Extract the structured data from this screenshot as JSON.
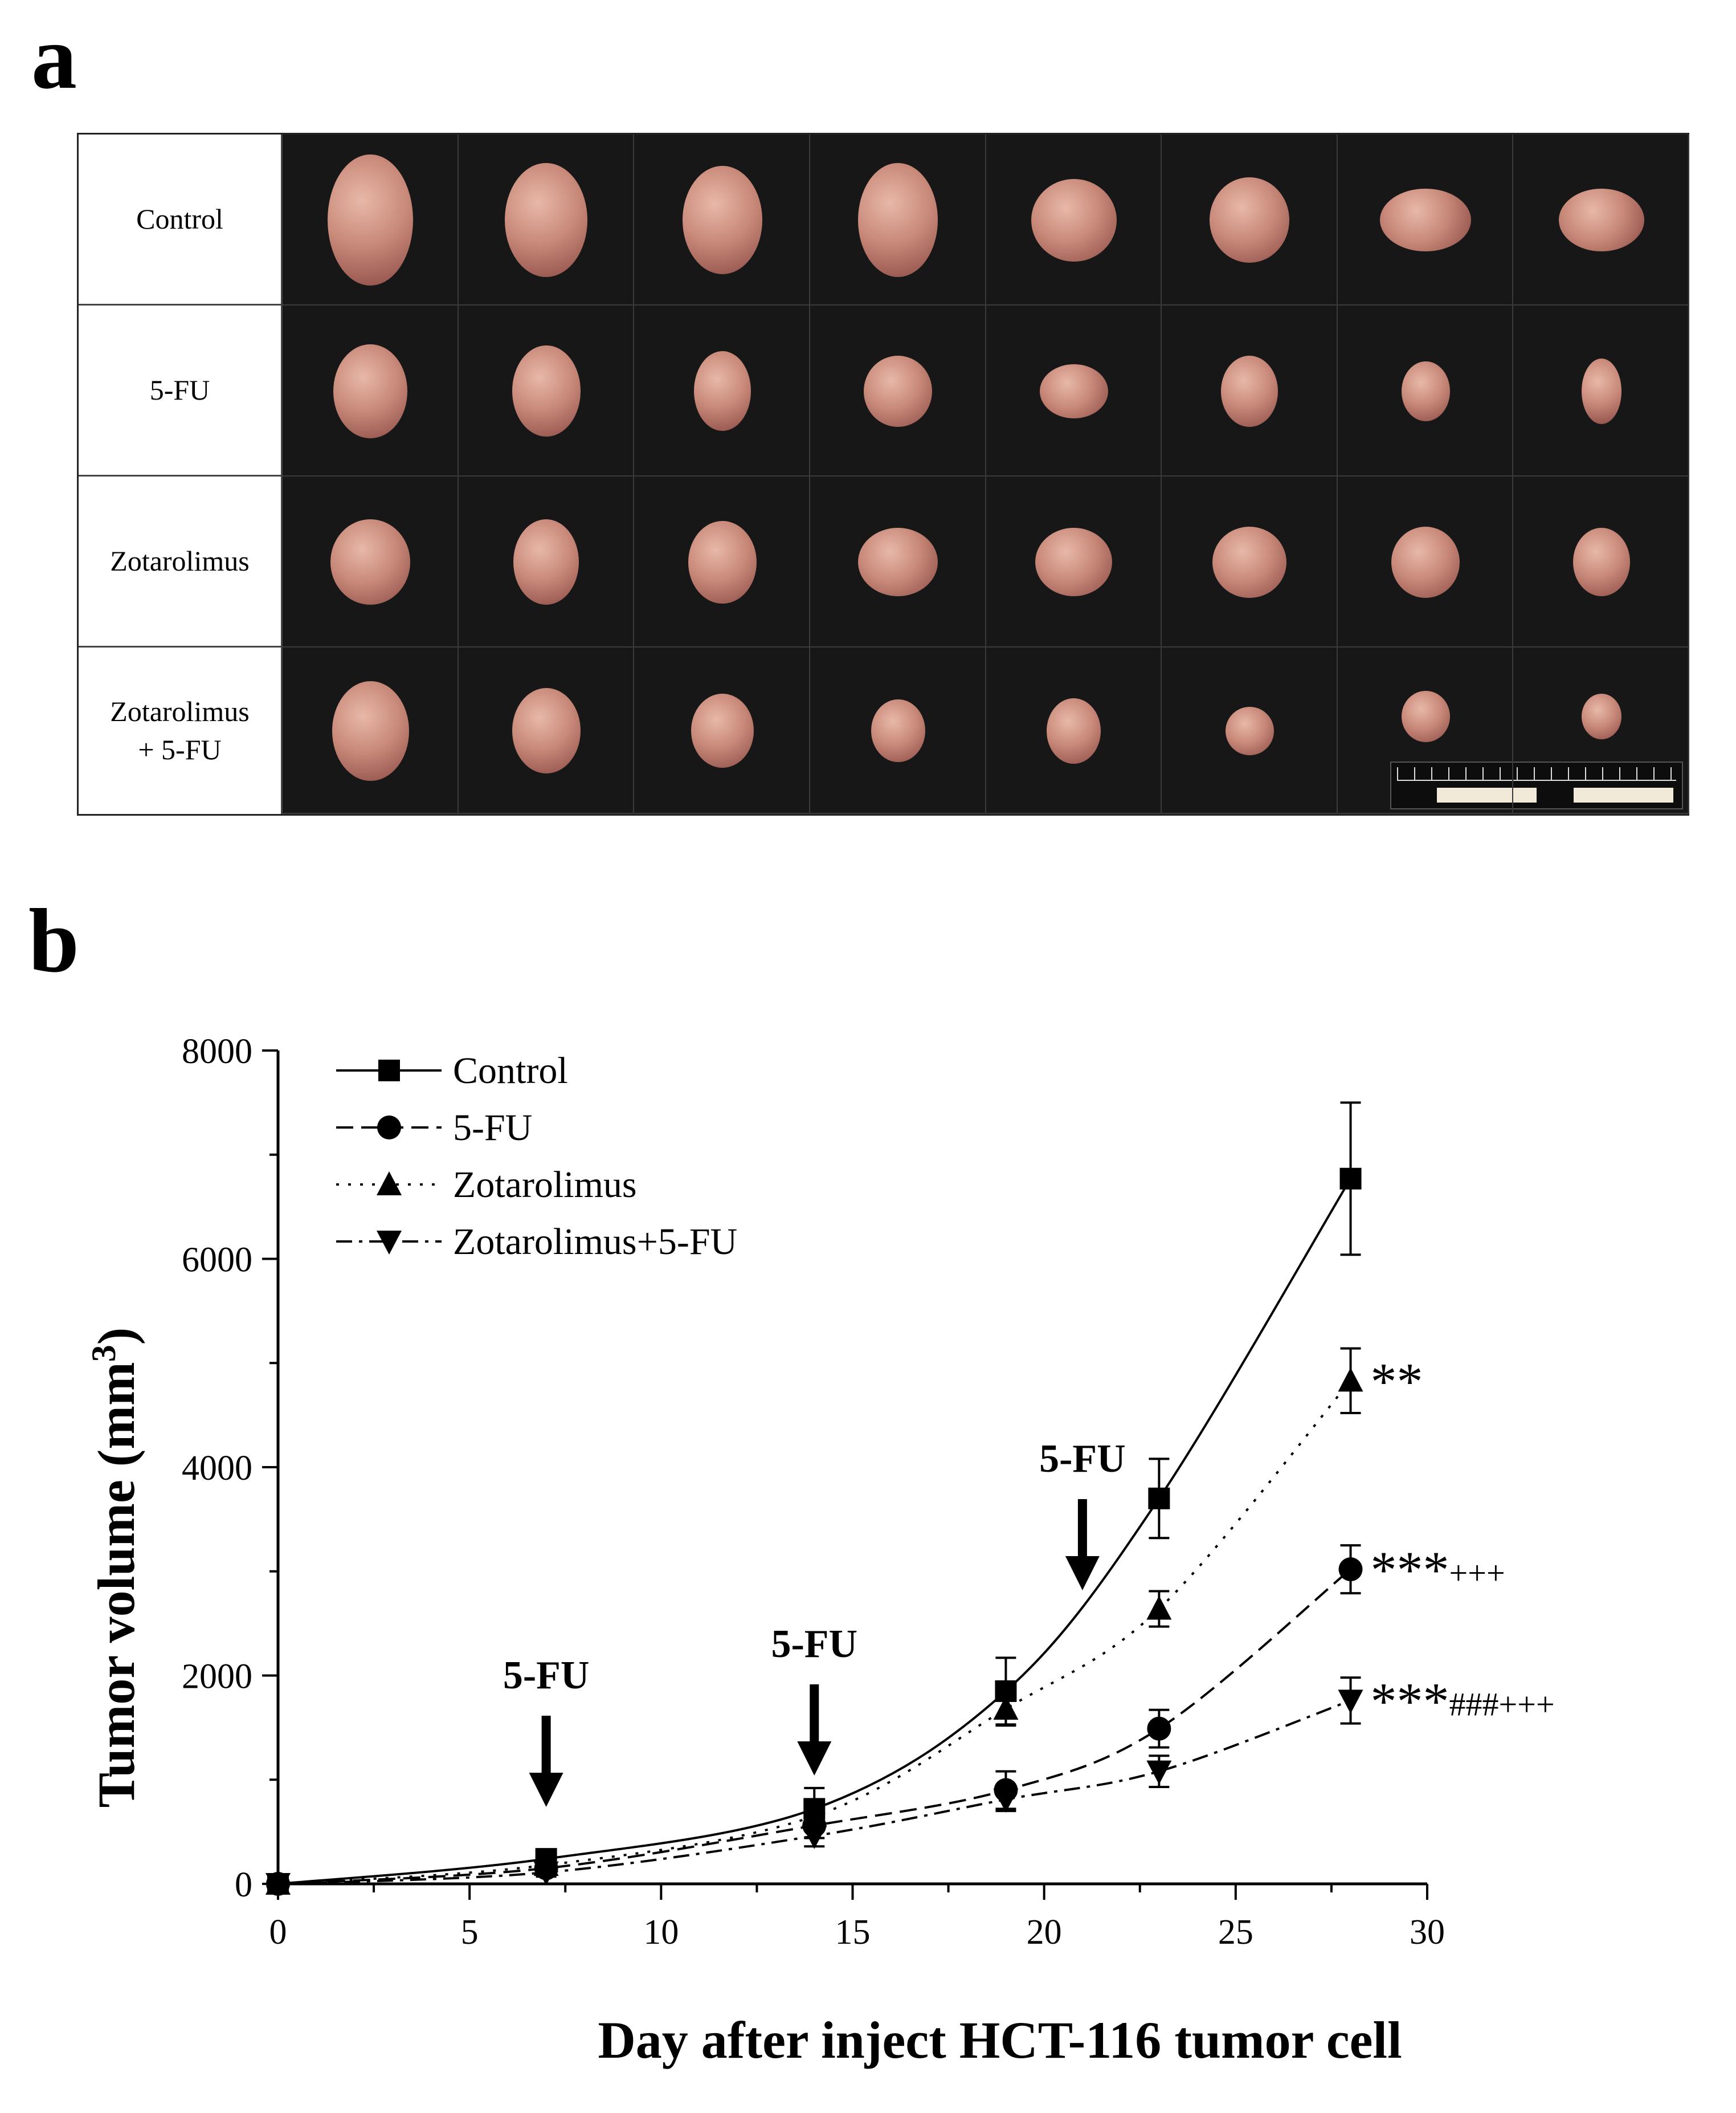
{
  "panel_a": {
    "letter": "a",
    "row_labels": [
      "Control",
      "5-FU",
      "Zotarolimus",
      "Zotarolimus\n+ 5-FU"
    ]
  },
  "panel_b": {
    "letter": "b",
    "annotations": {
      "dose_label": "5-FU"
    }
  },
  "chart_data": {
    "type": "line",
    "title": "",
    "xlabel": "Day after inject HCT-116 tumor cell",
    "ylabel": "Tumor volume (mm3)",
    "xlim": [
      0,
      30
    ],
    "ylim": [
      0,
      8000
    ],
    "x_ticks": [
      0,
      5,
      10,
      15,
      20,
      25,
      30
    ],
    "y_ticks": [
      0,
      2000,
      4000,
      6000,
      8000
    ],
    "legend_position": "top-left",
    "grid": false,
    "x": [
      0,
      7,
      14,
      19,
      23,
      28
    ],
    "series": [
      {
        "name": "Control",
        "marker": "square",
        "line": "solid",
        "values": [
          0,
          240,
          720,
          1850,
          3700,
          6770
        ],
        "errors": [
          40,
          60,
          200,
          320,
          380,
          730
        ]
      },
      {
        "name": "5-FU",
        "marker": "circle",
        "line": "dash",
        "values": [
          0,
          150,
          560,
          900,
          1490,
          3020
        ],
        "errors": [
          40,
          50,
          120,
          180,
          180,
          230
        ],
        "significance": "***+++"
      },
      {
        "name": "Zotarolimus",
        "marker": "triangle-up",
        "line": "dot",
        "values": [
          0,
          180,
          650,
          1680,
          2640,
          4830
        ],
        "errors": [
          40,
          50,
          140,
          160,
          170,
          310
        ],
        "significance": "**"
      },
      {
        "name": "Zotarolimus+5-FU",
        "marker": "triangle-down",
        "line": "dashdot",
        "values": [
          0,
          110,
          460,
          810,
          1080,
          1760
        ],
        "errors": [
          40,
          40,
          100,
          110,
          150,
          220
        ],
        "significance": "***###+++"
      }
    ],
    "dose_arrows_day": [
      7,
      14,
      21
    ]
  },
  "colors": {
    "ink": "#000000",
    "photo_background": "#171717"
  }
}
